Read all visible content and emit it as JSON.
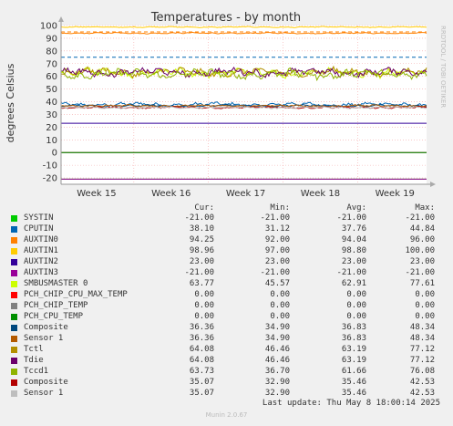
{
  "chart_data": {
    "type": "line",
    "title": "Temperatures - by month",
    "ylabel": "degrees Celsius",
    "ylim": [
      -25,
      100
    ],
    "yticks": [
      -20,
      -10,
      0,
      10,
      20,
      30,
      40,
      50,
      60,
      70,
      80,
      90,
      100
    ],
    "xticks": [
      "Week 15",
      "Week 16",
      "Week 17",
      "Week 18",
      "Week 19"
    ],
    "grid": true,
    "watermark": "RRDTOOL / TOBI OETIKER",
    "columns": [
      "Cur:",
      "Min:",
      "Avg:",
      "Max:"
    ],
    "series": [
      {
        "name": "SYSTIN",
        "color": "#00cc00",
        "cur": "-21.00",
        "min": "-21.00",
        "avg": "-21.00",
        "max": "-21.00",
        "level": -21,
        "noise": 0
      },
      {
        "name": "CPUTIN",
        "color": "#0066b3",
        "cur": "38.10",
        "min": "31.12",
        "avg": "37.76",
        "max": "44.84",
        "level": 37.8,
        "noise": 2.0
      },
      {
        "name": "AUXTIN0",
        "color": "#ff8000",
        "cur": "94.25",
        "min": "92.00",
        "avg": "94.04",
        "max": "96.00",
        "level": 94.0,
        "noise": 0.6
      },
      {
        "name": "AUXTIN1",
        "color": "#ffcc00",
        "cur": "98.96",
        "min": "97.00",
        "avg": "98.80",
        "max": "100.00",
        "level": 98.8,
        "noise": 0.5
      },
      {
        "name": "AUXTIN2",
        "color": "#330099",
        "cur": "23.00",
        "min": "23.00",
        "avg": "23.00",
        "max": "23.00",
        "level": 23,
        "noise": 0
      },
      {
        "name": "AUXTIN3",
        "color": "#990099",
        "cur": "-21.00",
        "min": "-21.00",
        "avg": "-21.00",
        "max": "-21.00",
        "level": -21,
        "noise": 0
      },
      {
        "name": "SMBUSMASTER 0",
        "color": "#ccff00",
        "cur": "63.77",
        "min": "45.57",
        "avg": "62.91",
        "max": "77.61",
        "level": 63.0,
        "noise": 4.5
      },
      {
        "name": "PCH_CHIP_CPU_MAX_TEMP",
        "color": "#ff0000",
        "cur": "0.00",
        "min": "0.00",
        "avg": "0.00",
        "max": "0.00",
        "level": 0,
        "noise": 0
      },
      {
        "name": "PCH_CHIP_TEMP",
        "color": "#808080",
        "cur": "0.00",
        "min": "0.00",
        "avg": "0.00",
        "max": "0.00",
        "level": 0,
        "noise": 0
      },
      {
        "name": "PCH_CPU_TEMP",
        "color": "#008f00",
        "cur": "0.00",
        "min": "0.00",
        "avg": "0.00",
        "max": "0.00",
        "level": 0,
        "noise": 0
      },
      {
        "name": "Composite",
        "color": "#00487d",
        "cur": "36.36",
        "min": "34.90",
        "avg": "36.83",
        "max": "48.34",
        "level": 36.8,
        "noise": 1.0
      },
      {
        "name": "Sensor 1",
        "color": "#b35a00",
        "cur": "36.36",
        "min": "34.90",
        "avg": "36.83",
        "max": "48.34",
        "level": 36.8,
        "noise": 1.0
      },
      {
        "name": "Tctl",
        "color": "#b38f00",
        "cur": "64.08",
        "min": "46.46",
        "avg": "63.19",
        "max": "77.12",
        "level": 63.2,
        "noise": 4.0
      },
      {
        "name": "Tdie",
        "color": "#6b006b",
        "cur": "64.08",
        "min": "46.46",
        "avg": "63.19",
        "max": "77.12",
        "level": 63.2,
        "noise": 4.0
      },
      {
        "name": "Tccd1",
        "color": "#8fb300",
        "cur": "63.73",
        "min": "36.70",
        "avg": "61.66",
        "max": "76.08",
        "level": 61.7,
        "noise": 4.5
      },
      {
        "name": "Composite",
        "color": "#b30000",
        "cur": "35.07",
        "min": "32.90",
        "avg": "35.46",
        "max": "42.53",
        "level": 35.4,
        "noise": 0.9
      },
      {
        "name": "Sensor 1",
        "color": "#bebebe",
        "cur": "35.07",
        "min": "32.90",
        "avg": "35.46",
        "max": "42.53",
        "level": 35.4,
        "noise": 0.9
      }
    ],
    "reference_lines": [
      {
        "value": 95,
        "color": "#ff8000"
      },
      {
        "value": 75,
        "color": "#0066b3"
      }
    ]
  },
  "footer": "Last update: Thu May  8 18:00:14 2025",
  "generator": "Munin 2.0.67"
}
